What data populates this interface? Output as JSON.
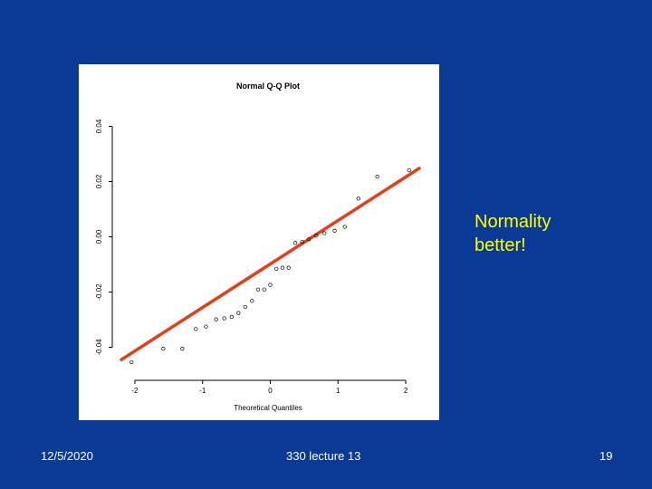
{
  "slide": {
    "callout_line1": "Normality",
    "callout_line2": "better!",
    "footer_date": "12/5/2020",
    "footer_center": "330 lecture 13",
    "footer_page": "19"
  },
  "colors": {
    "background": "#0b3a96",
    "callout": "#ffff00",
    "fit_line": "#e2401c",
    "points": "#000000"
  },
  "chart_data": {
    "type": "scatter",
    "title": "Normal Q-Q Plot",
    "xlabel": "Theoretical Quantiles",
    "ylabel": "",
    "xlim": [
      -2.2,
      2.2
    ],
    "ylim": [
      -0.05,
      0.05
    ],
    "x_ticks": [
      -2,
      -1,
      0,
      1,
      2
    ],
    "x_tick_labels": [
      "-2",
      "-1",
      "0",
      "1",
      "2"
    ],
    "y_ticks": [
      -0.04,
      -0.02,
      0.0,
      0.02,
      0.04
    ],
    "y_tick_labels": [
      "-0.04",
      "-0.02",
      "0.00",
      "0.02",
      "0.04"
    ],
    "grid": false,
    "points": [
      {
        "x": -2.05,
        "y": -0.0454
      },
      {
        "x": -1.58,
        "y": -0.0405
      },
      {
        "x": -1.3,
        "y": -0.0405
      },
      {
        "x": -1.1,
        "y": -0.0334
      },
      {
        "x": -0.95,
        "y": -0.0325
      },
      {
        "x": -0.8,
        "y": -0.0299
      },
      {
        "x": -0.68,
        "y": -0.0295
      },
      {
        "x": -0.57,
        "y": -0.029
      },
      {
        "x": -0.47,
        "y": -0.0276
      },
      {
        "x": -0.37,
        "y": -0.0254
      },
      {
        "x": -0.27,
        "y": -0.0232
      },
      {
        "x": -0.18,
        "y": -0.0191
      },
      {
        "x": -0.09,
        "y": -0.0191
      },
      {
        "x": 0.0,
        "y": -0.0174
      },
      {
        "x": 0.09,
        "y": -0.0116
      },
      {
        "x": 0.18,
        "y": -0.0112
      },
      {
        "x": 0.27,
        "y": -0.0112
      },
      {
        "x": 0.37,
        "y": -0.0022
      },
      {
        "x": 0.47,
        "y": -0.0018
      },
      {
        "x": 0.57,
        "y": -0.0009
      },
      {
        "x": 0.68,
        "y": 0.0004
      },
      {
        "x": 0.8,
        "y": 0.0013
      },
      {
        "x": 0.95,
        "y": 0.0022
      },
      {
        "x": 1.1,
        "y": 0.0036
      },
      {
        "x": 1.3,
        "y": 0.0138
      },
      {
        "x": 1.58,
        "y": 0.0218
      },
      {
        "x": 2.05,
        "y": 0.0241
      }
    ],
    "reference_line": {
      "x": [
        -2.2,
        2.2
      ],
      "y": [
        -0.0445,
        0.0248
      ]
    }
  }
}
